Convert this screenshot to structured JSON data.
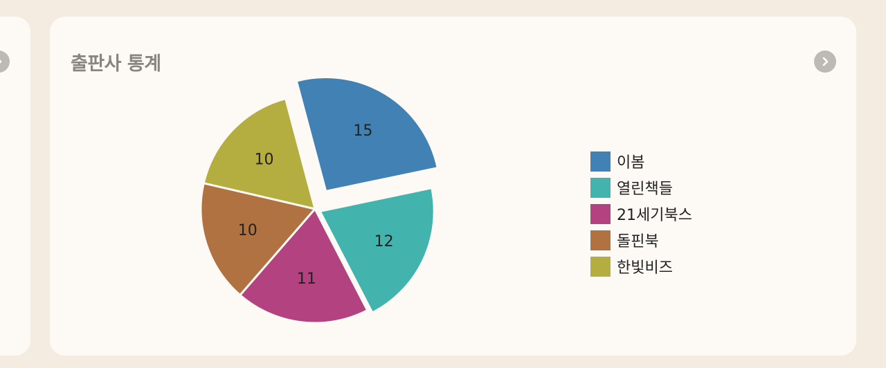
{
  "panel": {
    "title": "출판사 통계"
  },
  "icons": {
    "prev": "chevron-right-icon",
    "next": "chevron-right-icon"
  },
  "chart_data": {
    "type": "pie",
    "title": "출판사 통계",
    "legend_position": "right",
    "slices": [
      {
        "label": "이봄",
        "value": 15,
        "color": "#4281b4"
      },
      {
        "label": "열린책들",
        "value": 12,
        "color": "#43b3ad"
      },
      {
        "label": "21세기북스",
        "value": 11,
        "color": "#b24280"
      },
      {
        "label": "돌핀북",
        "value": 10,
        "color": "#af7240"
      },
      {
        "label": "한빛비즈",
        "value": 10,
        "color": "#b4ad40"
      }
    ]
  }
}
